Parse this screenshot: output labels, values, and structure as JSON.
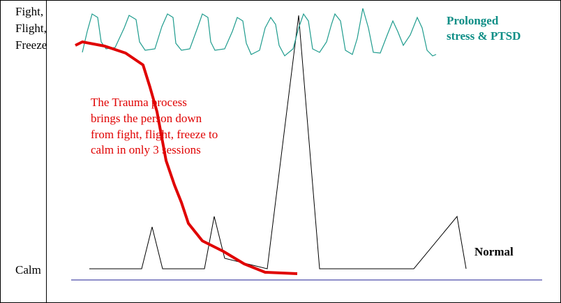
{
  "y_labels": {
    "top": [
      "Fight,",
      "Flight,",
      "Freeze"
    ],
    "bottom": "Calm"
  },
  "annotations": {
    "stress": [
      "Prolonged",
      "stress & PTSD"
    ],
    "trauma": [
      "The Trauma process",
      "brings the person down",
      "from fight, flight, freeze to",
      "calm in only 3 sessions"
    ],
    "normal": "Normal"
  }
}
